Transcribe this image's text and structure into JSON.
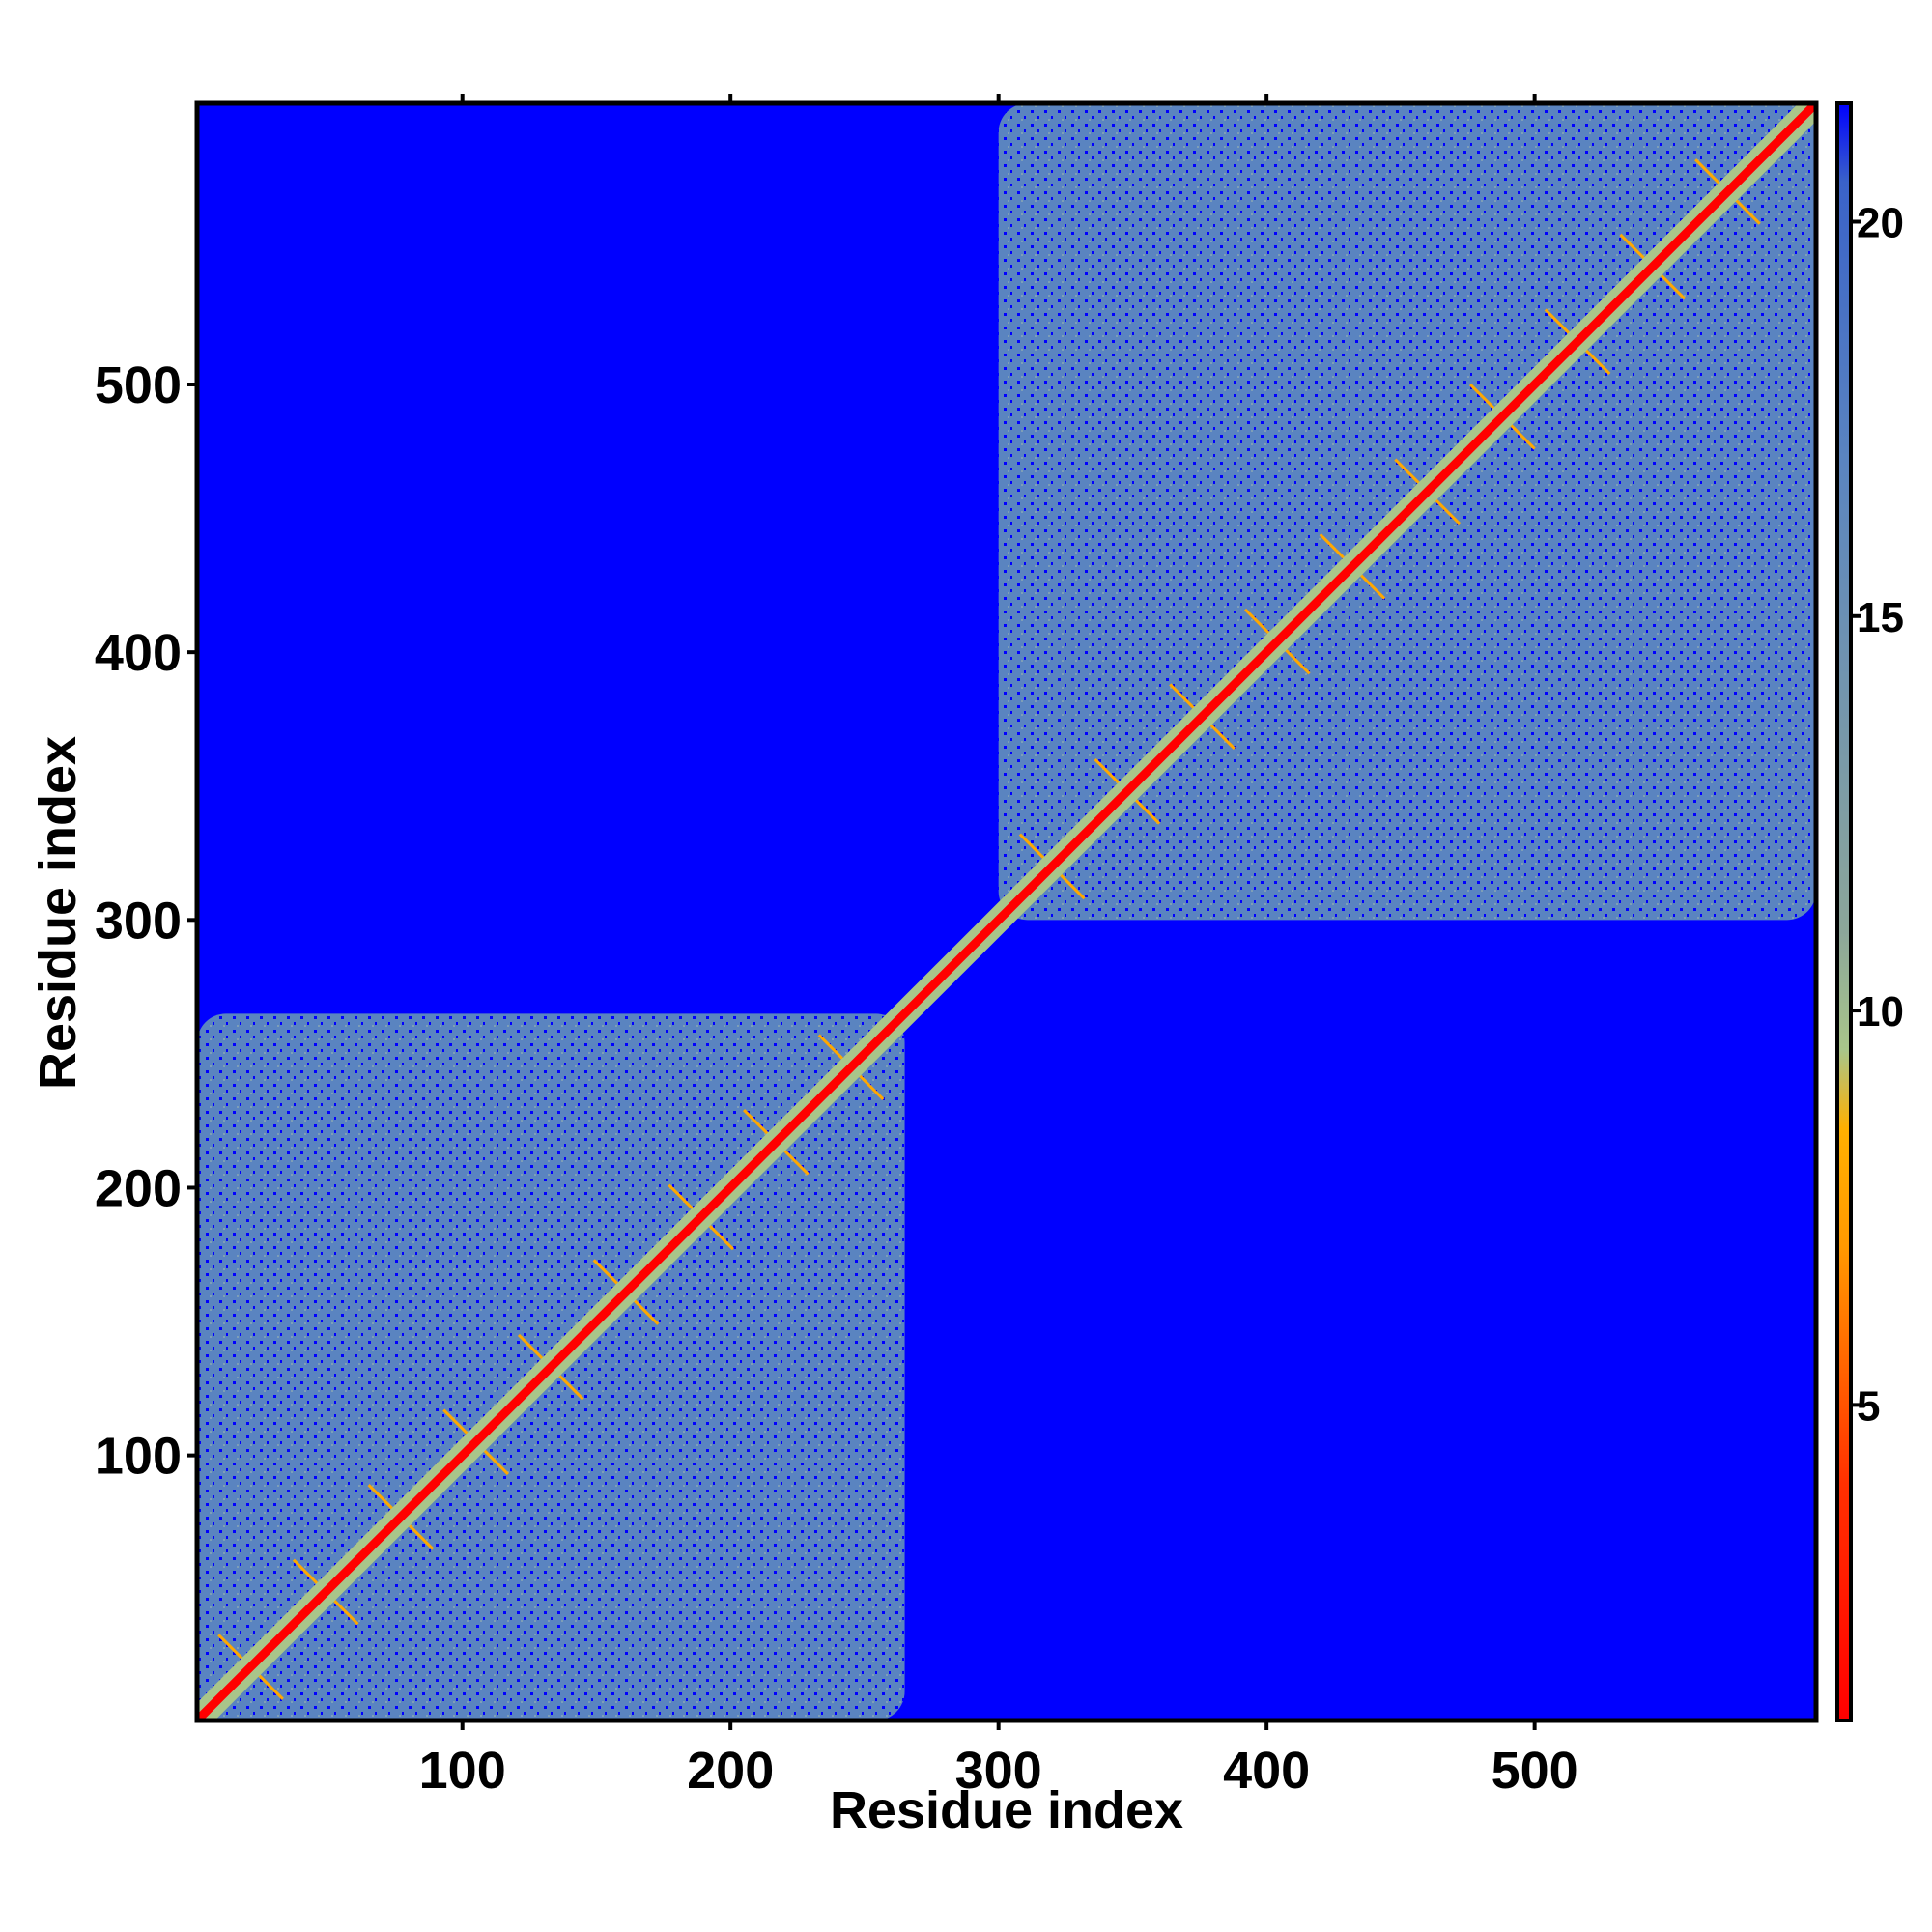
{
  "chart_data": {
    "type": "heatmap",
    "title": "",
    "xlabel": "Residue index",
    "ylabel": "Residue index",
    "xlim": [
      1,
      605
    ],
    "ylim": [
      1,
      605
    ],
    "x_ticks": [
      100,
      200,
      300,
      400,
      500
    ],
    "y_ticks": [
      100,
      200,
      300,
      400,
      500
    ],
    "colorbar": {
      "ticks": [
        5,
        10,
        15,
        20
      ],
      "range": [
        1,
        21.5
      ],
      "stops": [
        {
          "value": 1,
          "color": "#ff0000"
        },
        {
          "value": 4,
          "color": "#ff3000"
        },
        {
          "value": 7,
          "color": "#ff9900"
        },
        {
          "value": 8.5,
          "color": "#ffb000"
        },
        {
          "value": 9.5,
          "color": "#a9c58a"
        },
        {
          "value": 11,
          "color": "#8ca69a"
        },
        {
          "value": 17,
          "color": "#5a84c0"
        },
        {
          "value": 20.5,
          "color": "#3a62c8"
        },
        {
          "value": 21.5,
          "color": "#0000ff"
        }
      ]
    },
    "domains": [
      {
        "start": 1,
        "end": 265
      },
      {
        "start": 300,
        "end": 605
      }
    ],
    "background_value": 21.5,
    "diagonal_value": 1
  }
}
